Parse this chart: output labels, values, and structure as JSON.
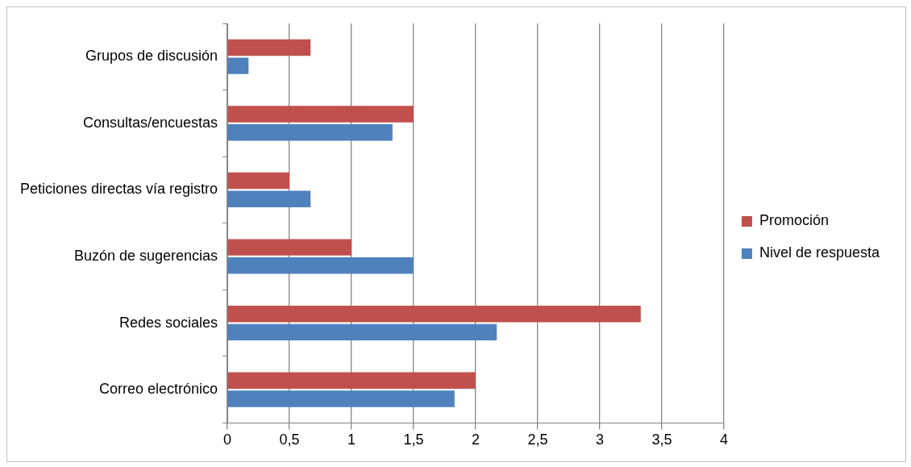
{
  "chart_data": {
    "type": "bar",
    "orientation": "horizontal",
    "categories": [
      "Grupos de discusión",
      "Consultas/encuestas",
      "Peticiones directas vía registro",
      "Buzón de sugerencias",
      "Redes sociales",
      "Correo electrónico"
    ],
    "series": [
      {
        "name": "Promoción",
        "color": "#c0504d",
        "values": [
          0.67,
          1.5,
          0.5,
          1.0,
          3.33,
          2.0
        ]
      },
      {
        "name": "Nivel de respuesta",
        "color": "#4f81bd",
        "values": [
          0.17,
          1.33,
          0.67,
          1.5,
          2.17,
          1.83
        ]
      }
    ],
    "xlim": [
      0,
      4
    ],
    "xticks": [
      0,
      {
        "value": 0.5,
        "label": "0,5"
      },
      1,
      {
        "value": 1.5,
        "label": "1,5"
      },
      2,
      {
        "value": 2.5,
        "label": "2,5"
      },
      3,
      {
        "value": 3.5,
        "label": "3,5"
      },
      4
    ],
    "grid": "x",
    "legend": "right"
  }
}
